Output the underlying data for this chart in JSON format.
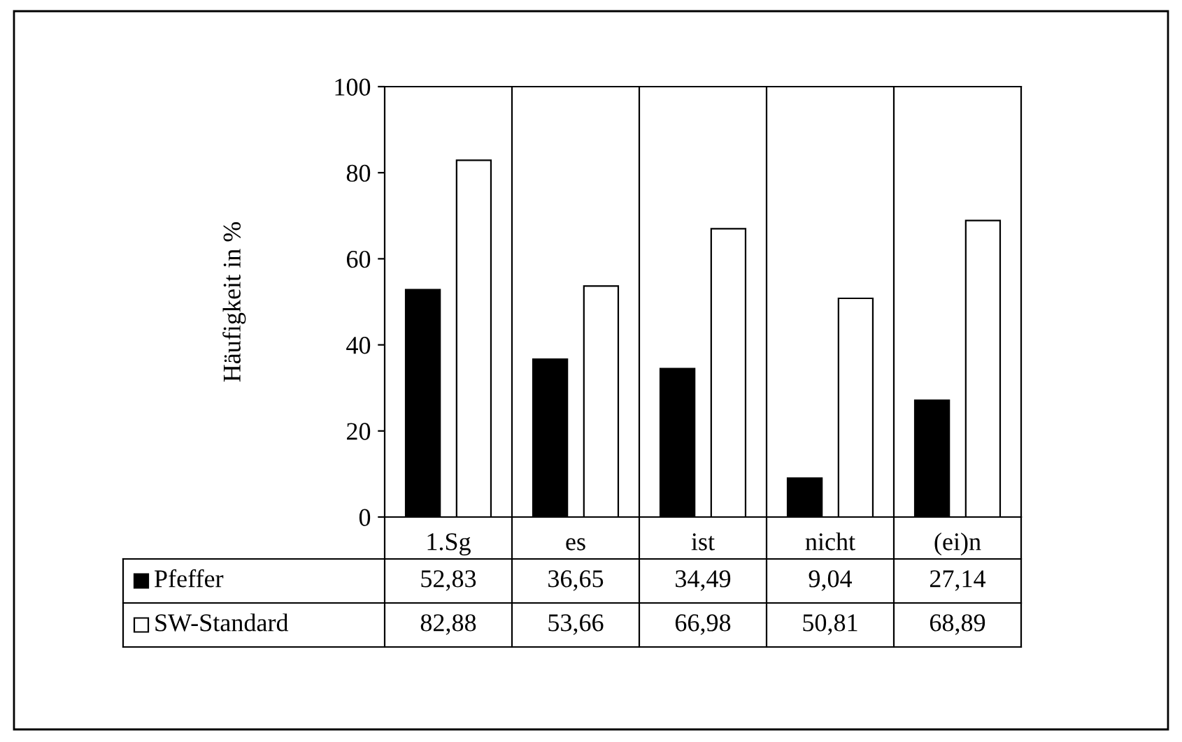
{
  "chart_data": {
    "type": "bar",
    "ylabel": "Häufigkeit in %",
    "categories": [
      "1.Sg",
      "es",
      "ist",
      "nicht",
      "(ei)n"
    ],
    "series": [
      {
        "name": "Pfeffer",
        "color": "#000000",
        "values": [
          52.83,
          36.65,
          34.49,
          9.04,
          27.14
        ],
        "value_labels": [
          "52,83",
          "36,65",
          "34,49",
          "9,04",
          "27,14"
        ]
      },
      {
        "name": "SW-Standard",
        "color": "#ffffff",
        "values": [
          82.88,
          53.66,
          66.98,
          50.81,
          68.89
        ],
        "value_labels": [
          "82,88",
          "53,66",
          "66,98",
          "50,81",
          "68,89"
        ]
      }
    ],
    "ylim": [
      0,
      100
    ],
    "yticks": [
      0,
      20,
      40,
      60,
      80,
      100
    ],
    "grid": "x",
    "legend": "bottom left"
  }
}
